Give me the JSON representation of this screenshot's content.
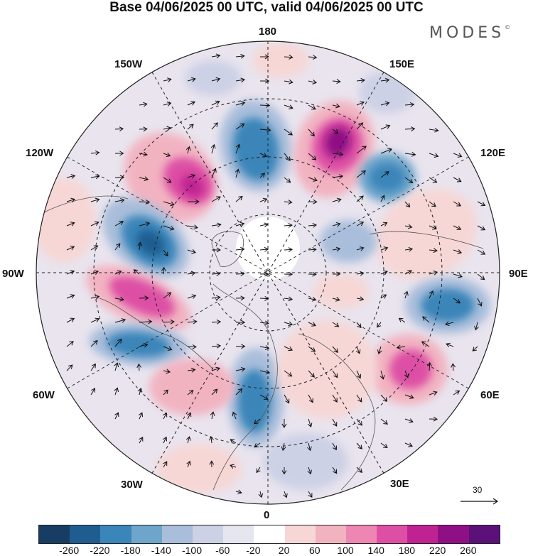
{
  "title": "Base 04/06/2025 00 UTC, valid 04/06/2025 00 UTC",
  "logo": {
    "text": "MODES",
    "mark": "©"
  },
  "longitude_labels": {
    "lon_180": "180",
    "lon_150e": "150E",
    "lon_120e": "120E",
    "lon_90e": "90E",
    "lon_60e": "60E",
    "lon_30e": "30E",
    "lon_0": "0",
    "lon_30w": "30W",
    "lon_60w": "60W",
    "lon_90w": "90W",
    "lon_120w": "120W",
    "lon_150w": "150W"
  },
  "vector_scale": {
    "value": "30"
  },
  "colorbar": {
    "colors": [
      "#173d62",
      "#1f5d91",
      "#3a85b9",
      "#6ea5cb",
      "#a9bedb",
      "#cdd1e6",
      "#e6e6f1",
      "#ffffff",
      "#f6d7d6",
      "#f2b3c1",
      "#ed86b2",
      "#dd4fa4",
      "#c02292",
      "#8f0f84",
      "#5b1179"
    ],
    "tick_labels": [
      "-260",
      "-220",
      "-180",
      "-140",
      "-100",
      "-60",
      "-20",
      "20",
      "60",
      "100",
      "140",
      "180",
      "220",
      "260"
    ]
  }
}
